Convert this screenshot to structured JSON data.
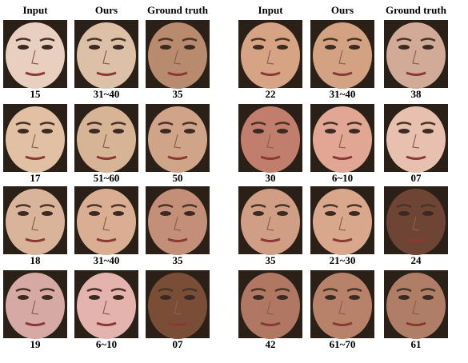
{
  "groups": [
    {
      "headers": [
        "Input",
        "Ours",
        "Ground truth"
      ],
      "rows": [
        [
          "15",
          "31~40",
          "35"
        ],
        [
          "17",
          "51~60",
          "50"
        ],
        [
          "18",
          "31~40",
          "35"
        ],
        [
          "19",
          "6~10",
          "07"
        ]
      ]
    },
    {
      "headers": [
        "Input",
        "Ours",
        "Ground truth"
      ],
      "rows": [
        [
          "22",
          "31~40",
          "38"
        ],
        [
          "30",
          "6~10",
          "07"
        ],
        [
          "35",
          "21~30",
          "24"
        ],
        [
          "42",
          "61~70",
          "61"
        ]
      ]
    }
  ]
}
